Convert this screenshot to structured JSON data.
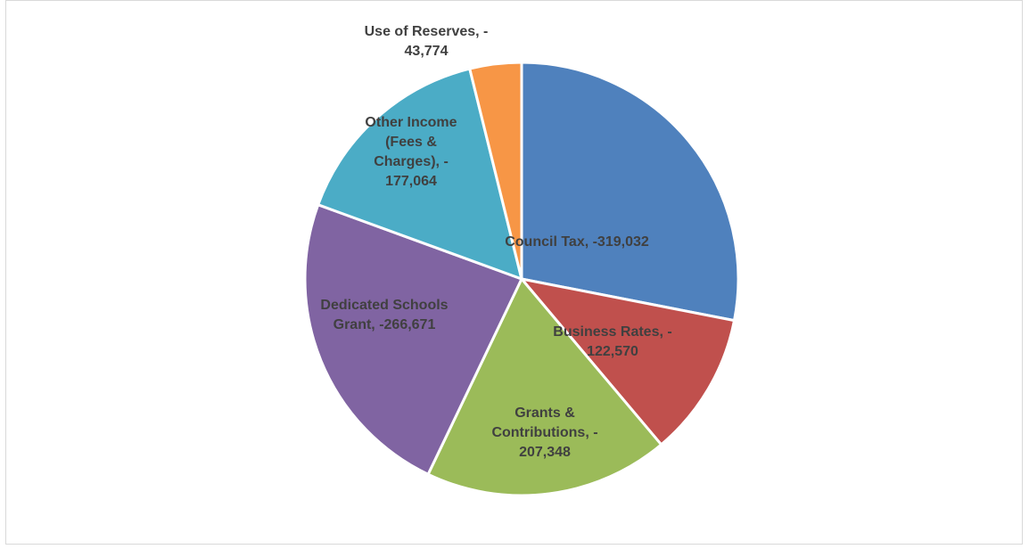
{
  "chart_data": {
    "type": "pie",
    "start_angle_deg": 0,
    "direction": "clockwise",
    "slices": [
      {
        "name": "Council Tax",
        "value": -319032,
        "color": "#4f81bd",
        "label_lines": [
          "Council Tax, -319,032"
        ]
      },
      {
        "name": "Business Rates",
        "value": -122570,
        "color": "#c0504d",
        "label_lines": [
          "Business Rates, -",
          "122,570"
        ]
      },
      {
        "name": "Grants & Contributions",
        "value": -207348,
        "color": "#9bbb59",
        "label_lines": [
          "Grants &",
          "Contributions, -",
          "207,348"
        ]
      },
      {
        "name": "Dedicated Schools Grant",
        "value": -266671,
        "color": "#8064a2",
        "label_lines": [
          "Dedicated Schools",
          "Grant, -266,671"
        ]
      },
      {
        "name": "Other Income (Fees & Charges)",
        "value": -177064,
        "color": "#4bacc6",
        "label_lines": [
          "Other Income",
          "(Fees &",
          "Charges), -",
          "177,064"
        ]
      },
      {
        "name": "Use of Reserves",
        "value": -43774,
        "color": "#f79646",
        "label_lines": [
          "Use of Reserves, -",
          "43,774"
        ]
      }
    ]
  }
}
